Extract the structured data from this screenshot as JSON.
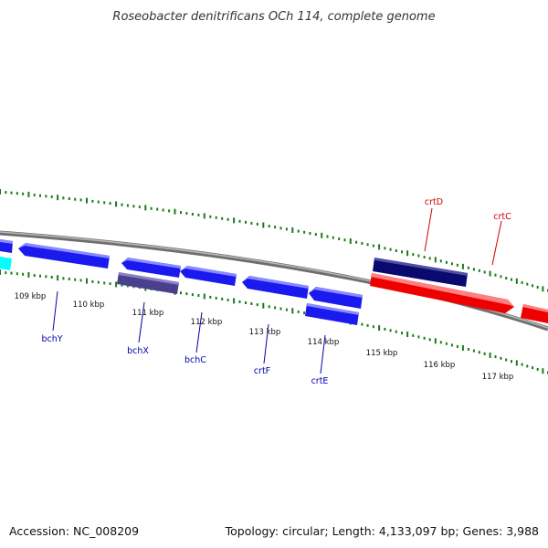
{
  "title": "Roseobacter denitrificans OCh 114, complete genome",
  "footer": {
    "accession": "Accession: NC_008209",
    "summary": "Topology: circular; Length: 4,133,097 bp; Genes: 3,988"
  },
  "scale_ticks": [
    {
      "label": "109 kbp"
    },
    {
      "label": "110 kbp"
    },
    {
      "label": "111 kbp"
    },
    {
      "label": "112 kbp"
    },
    {
      "label": "113 kbp"
    },
    {
      "label": "114 kbp"
    },
    {
      "label": "115 kbp"
    },
    {
      "label": "116 kbp"
    },
    {
      "label": "117 kbp"
    }
  ],
  "gene_labels": [
    {
      "name": "bchY",
      "color": "#0000aa"
    },
    {
      "name": "bchX",
      "color": "#0000aa"
    },
    {
      "name": "bchC",
      "color": "#0000aa"
    },
    {
      "name": "crtF",
      "color": "#0000aa"
    },
    {
      "name": "crtE",
      "color": "#0000aa"
    },
    {
      "name": "crtD",
      "color": "#cc0000"
    },
    {
      "name": "crtC",
      "color": "#cc0000"
    }
  ],
  "colors": {
    "backbone": "#888888",
    "dotted_track": "#1a7a1a",
    "gene_blue": "#1a1aee",
    "gene_slate": "#4a3f8c",
    "gene_navy": "#0a0a6e",
    "gene_red": "#ee0000",
    "gene_cyan": "#00ffff"
  }
}
